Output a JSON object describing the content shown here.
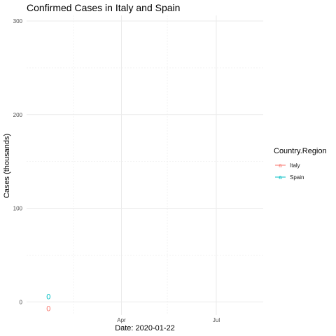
{
  "chart_data": {
    "type": "line",
    "title": "Confirmed Cases in Italy and Spain",
    "xlabel": "Date: 2020-01-22",
    "ylabel": "Cases (thousands)",
    "ylim": [
      -14,
      306
    ],
    "xlim": [
      "2020-01-01",
      "2020-08-15"
    ],
    "x_ticks": [
      {
        "date": "2020-04-01",
        "label": "Apr"
      },
      {
        "date": "2020-07-01",
        "label": "Jul"
      }
    ],
    "x_grid_major": [
      "2020-04-01",
      "2020-07-01"
    ],
    "x_grid_minor": [
      "2020-02-15",
      "2020-05-15"
    ],
    "y_ticks": [
      0,
      100,
      200,
      300
    ],
    "y_grid_minor": [
      50,
      150,
      250
    ],
    "grid": true,
    "legend": {
      "title": "Country.Region",
      "position": "right",
      "entries": [
        {
          "name": "Italy",
          "color": "#F8766D",
          "key_glyph": "a"
        },
        {
          "name": "Spain",
          "color": "#00BFC4",
          "key_glyph": "a"
        }
      ]
    },
    "series": [
      {
        "name": "Italy",
        "color": "#F8766D",
        "points": [
          {
            "date": "2020-01-22",
            "value": 0
          }
        ],
        "label": "0",
        "label_position": "below"
      },
      {
        "name": "Spain",
        "color": "#00BFC4",
        "points": [
          {
            "date": "2020-01-22",
            "value": 0
          }
        ],
        "label": "0",
        "label_position": "above"
      }
    ]
  }
}
